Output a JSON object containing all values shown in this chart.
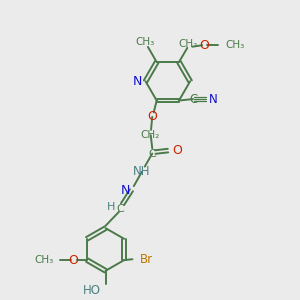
{
  "background_color": "#ebebeb",
  "bond_color": "#4a7a4a",
  "nitrogen_color": "#1010cc",
  "oxygen_color": "#cc2200",
  "bromine_color": "#bb7700",
  "hydrogen_color": "#4a8080",
  "figsize": [
    3.0,
    3.0
  ],
  "dpi": 100,
  "xlim": [
    0,
    10
  ],
  "ylim": [
    0,
    10
  ]
}
